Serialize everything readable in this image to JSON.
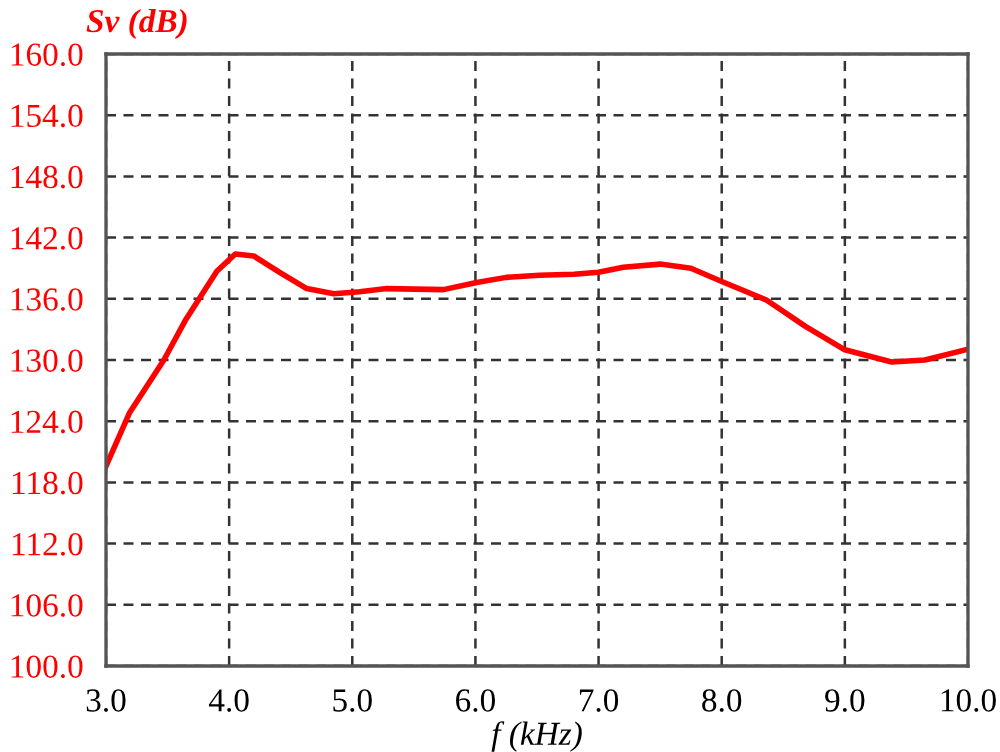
{
  "chart_data": {
    "type": "line",
    "xlabel": "f (kHz)",
    "ylabel": "Sv (dB)",
    "xlim": [
      3.0,
      10.0
    ],
    "xticks": [
      {
        "value": 3,
        "label": "3.0"
      },
      {
        "value": 4,
        "label": "4.0"
      },
      {
        "value": 5,
        "label": "5.0"
      },
      {
        "value": 6,
        "label": "6.0"
      },
      {
        "value": 7,
        "label": "7.0"
      },
      {
        "value": 8,
        "label": "8.0"
      },
      {
        "value": 9,
        "label": "9.0"
      },
      {
        "value": 10,
        "label": "10.0"
      }
    ],
    "ylim": [
      100.0,
      160.0
    ],
    "yticks": [
      {
        "value": 100,
        "label": "100.0"
      },
      {
        "value": 106,
        "label": "106.0"
      },
      {
        "value": 112,
        "label": "112.0"
      },
      {
        "value": 118,
        "label": "118.0"
      },
      {
        "value": 124,
        "label": "124.0"
      },
      {
        "value": 130,
        "label": "130.0"
      },
      {
        "value": 136,
        "label": "136.0"
      },
      {
        "value": 142,
        "label": "142.0"
      },
      {
        "value": 148,
        "label": "148.0"
      },
      {
        "value": 154,
        "label": "154.0"
      },
      {
        "value": 160,
        "label": "160.0"
      }
    ],
    "grid": true,
    "marker": "none",
    "line_style": "solid",
    "series": [
      {
        "color": "#ff0000",
        "x": [
          3.0,
          3.19,
          3.47,
          3.65,
          3.9,
          4.05,
          4.2,
          4.41,
          4.63,
          4.85,
          5.06,
          5.28,
          5.74,
          6.01,
          6.25,
          6.52,
          6.8,
          7.0,
          7.2,
          7.5,
          7.75,
          8.0,
          8.36,
          8.68,
          9.0,
          9.38,
          9.65,
          9.98
        ],
        "values": [
          119.6,
          124.8,
          130.0,
          134.0,
          138.7,
          140.4,
          140.2,
          138.6,
          137.0,
          136.5,
          136.7,
          137.0,
          136.9,
          137.6,
          138.1,
          138.3,
          138.4,
          138.6,
          139.1,
          139.4,
          139.0,
          137.7,
          135.9,
          133.3,
          131.0,
          129.8,
          130.0,
          131.0
        ]
      }
    ]
  }
}
